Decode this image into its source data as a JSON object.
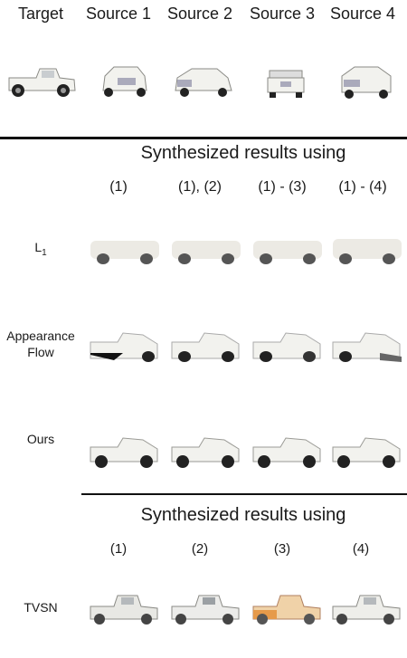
{
  "top_headers": [
    "Target",
    "Source 1",
    "Source 2",
    "Source 3",
    "Source 4"
  ],
  "section1": {
    "title": "Synthesized results using",
    "columns": [
      "(1)",
      "(1), (2)",
      "(1) - (3)",
      "(1) - (4)"
    ],
    "rows": {
      "l1": {
        "label": "L",
        "sub": "1"
      },
      "appearance_flow": {
        "line1": "Appearance",
        "line2": "Flow"
      },
      "ours": {
        "label": "Ours"
      }
    }
  },
  "section2": {
    "title": "Synthesized results using",
    "columns": [
      "(1)",
      "(2)",
      "(3)",
      "(4)"
    ],
    "rows": {
      "tvsn": {
        "label": "TVSN"
      }
    }
  }
}
